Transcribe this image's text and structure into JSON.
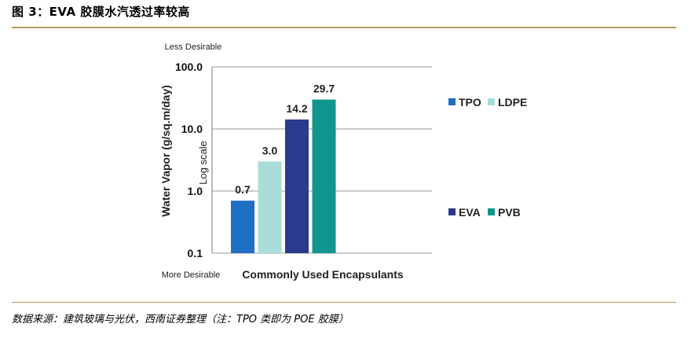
{
  "figure": {
    "title": "图 3：EVA 胶膜水汽透过率较高",
    "source": "数据来源：建筑玻璃与光伏，西南证券整理（注：TPO 类即为 POE 胶膜）"
  },
  "chart_data": {
    "type": "bar",
    "scale": "log",
    "title": "",
    "xlabel": "Commonly Used Encapsulants",
    "ylabel": "Water Vapor (g/sq.m/day)",
    "scale_label": "Log scale",
    "top_annotation": "Less Desirable",
    "bottom_annotation": "More Desirable",
    "yticks": [
      "100.0",
      "10.0",
      "1.0",
      "0.1"
    ],
    "ylim": [
      0.1,
      100
    ],
    "grid": true,
    "categories": [
      "TPO",
      "LDPE",
      "EVA",
      "PVB"
    ],
    "values": [
      0.7,
      3.0,
      14.2,
      29.7
    ],
    "value_labels": [
      "0.7",
      "3.0",
      "14.2",
      "29.7"
    ],
    "colors": [
      "#1f6fc5",
      "#a9ddd9",
      "#2b3a8c",
      "#10968f"
    ],
    "legend": [
      {
        "name": "TPO",
        "color": "#1f6fc5"
      },
      {
        "name": "LDPE",
        "color": "#a9ddd9"
      },
      {
        "name": "EVA",
        "color": "#2b3a8c"
      },
      {
        "name": "PVB",
        "color": "#10968f"
      }
    ],
    "legend_position": "right"
  }
}
